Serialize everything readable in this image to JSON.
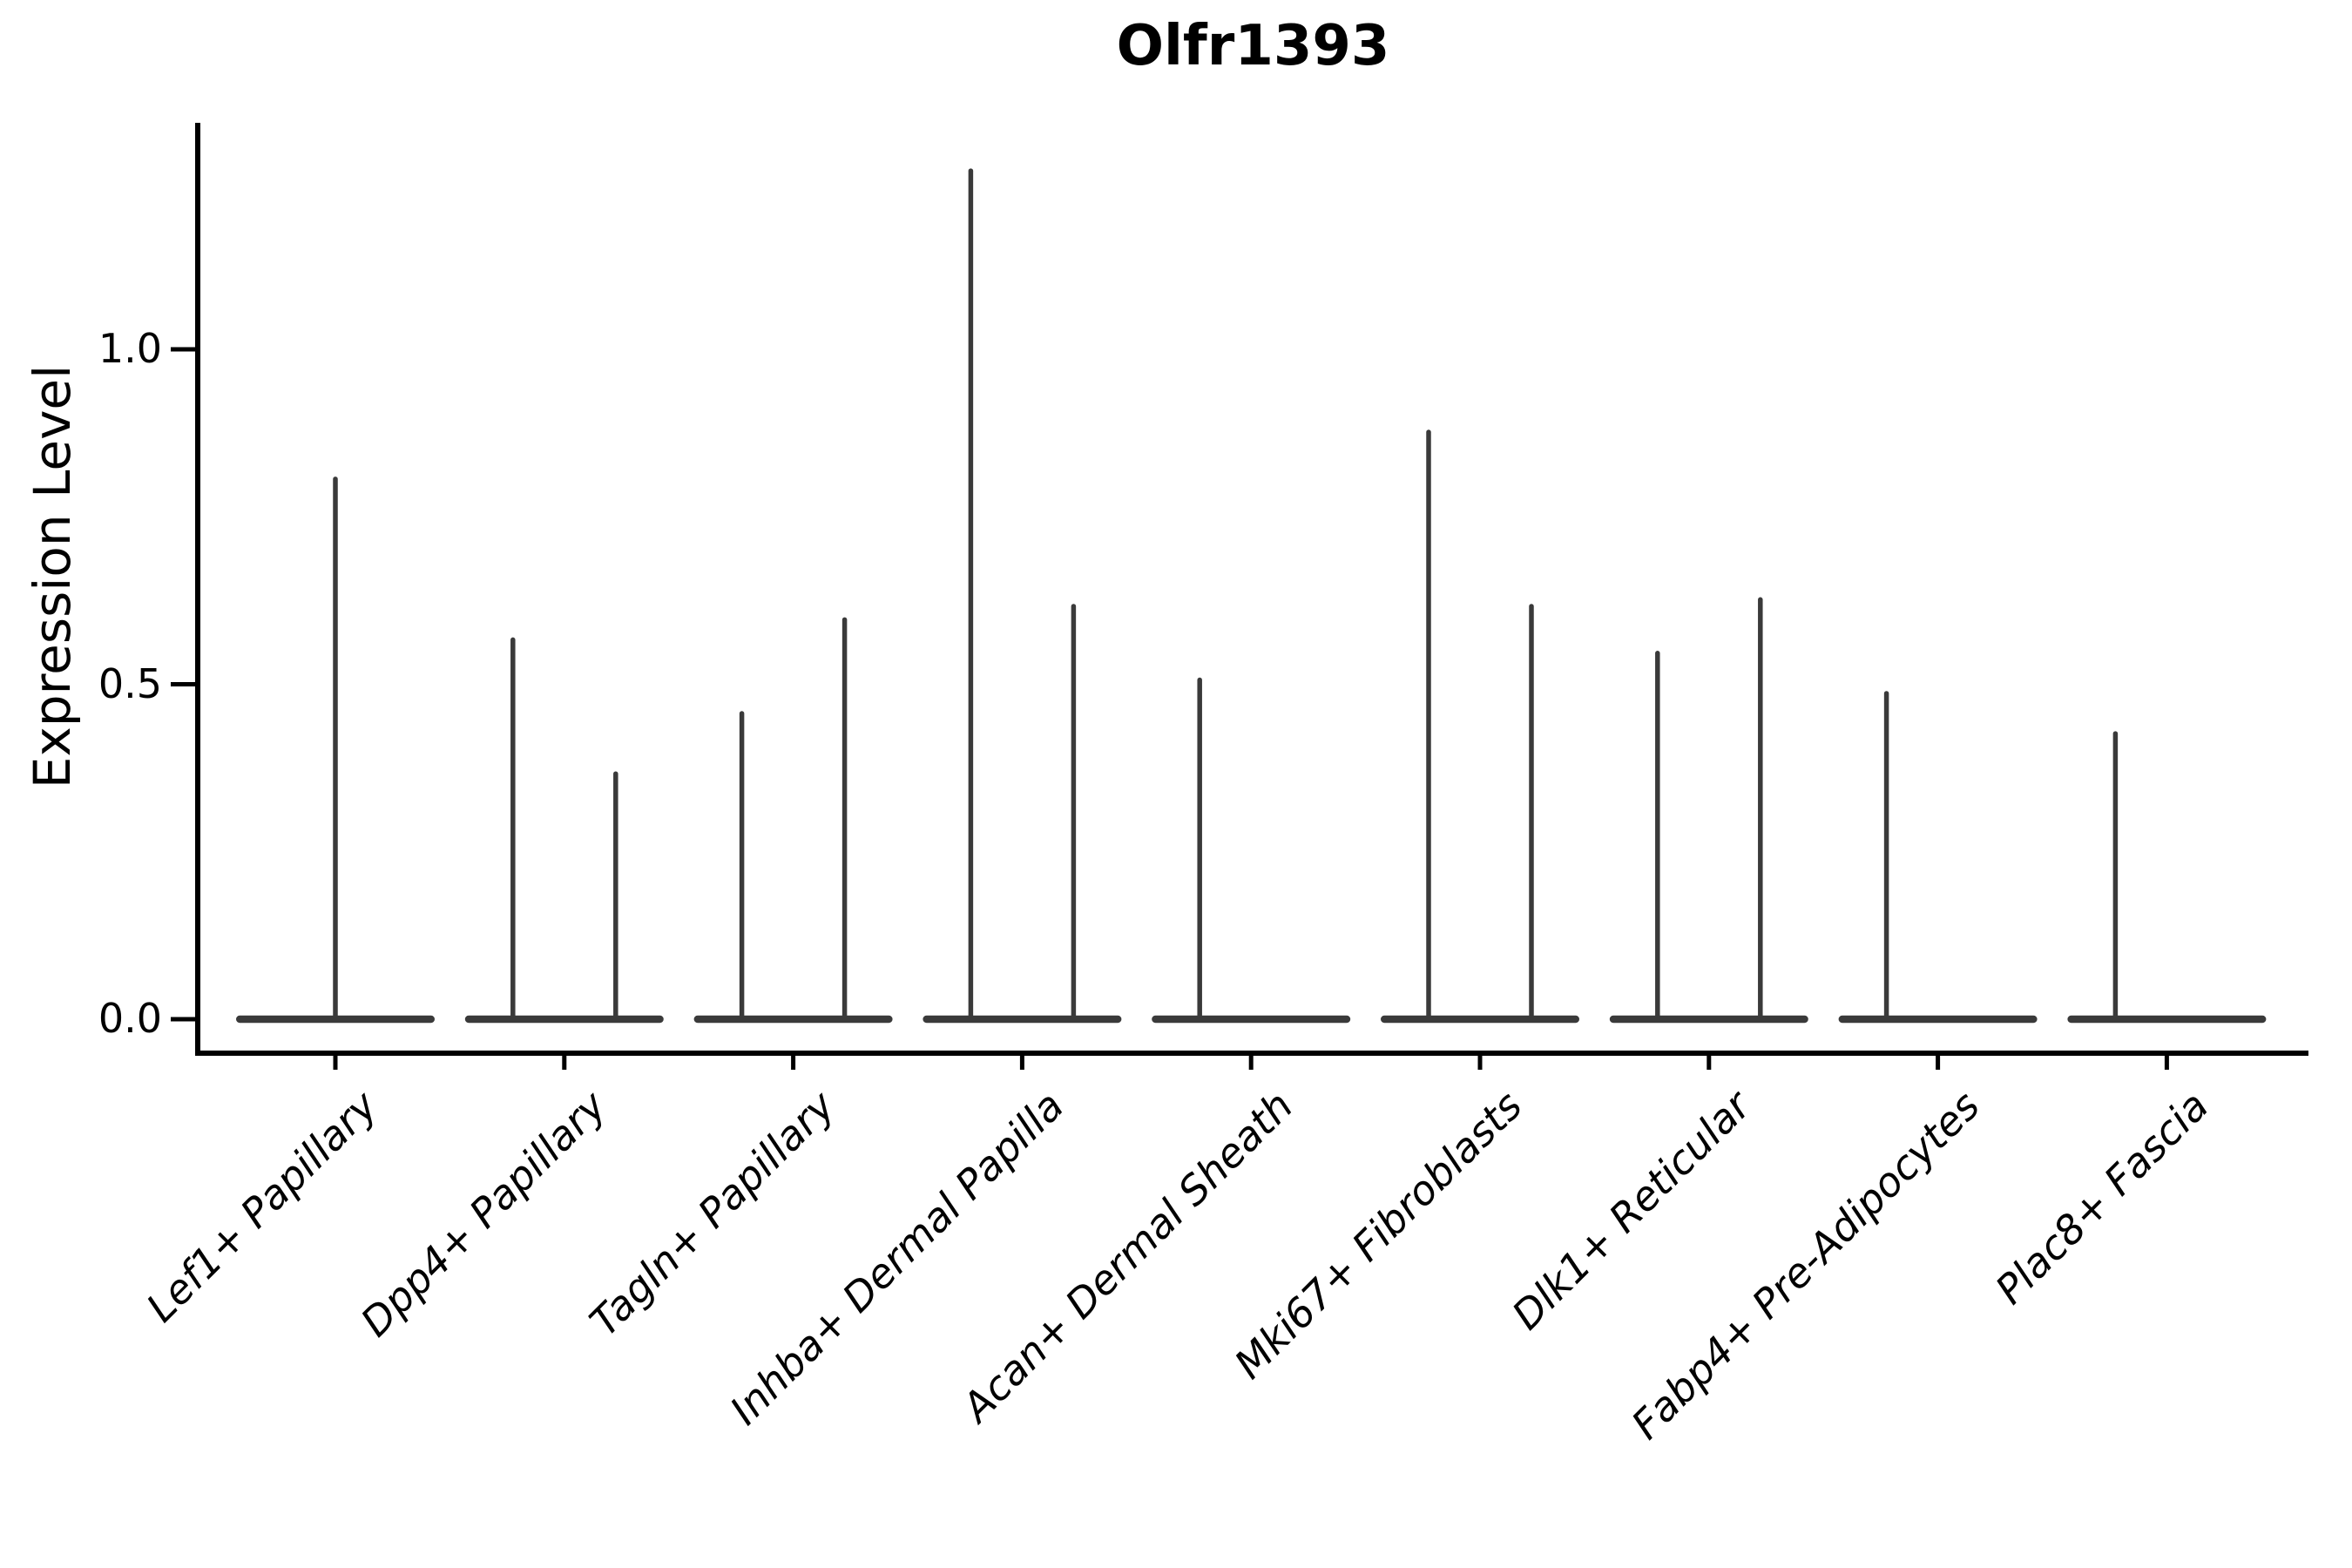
{
  "chart_data": {
    "type": "violin",
    "title": "Olfr1393",
    "ylabel": "Expression Level",
    "xlabel": "",
    "ylim": [
      -0.05,
      1.34
    ],
    "yticks": [
      1.0,
      0.5,
      0.0
    ],
    "grid": false,
    "legend": "none",
    "despine": [
      "top",
      "right"
    ],
    "baseline_value": 0.0,
    "categories": [
      "Lef1+ Papillary",
      "Dpp4+ Papillary",
      "Tagln+ Papillary",
      "Inhba+ Dermal Papilla",
      "Acan+ Dermal Sheath",
      "Mki67+ Fibroblasts",
      "Dlk1+ Reticular",
      "Fabp4+ Pre-Adipocytes",
      "Plac8+ Fascia"
    ],
    "violins": [
      {
        "category": "Lef1+ Papillary",
        "spikes": [
          {
            "position": "center",
            "max": 0.81
          }
        ]
      },
      {
        "category": "Dpp4+ Papillary",
        "spikes": [
          {
            "position": "left",
            "max": 0.57
          },
          {
            "position": "right",
            "max": 0.37
          }
        ]
      },
      {
        "category": "Tagln+ Papillary",
        "spikes": [
          {
            "position": "left",
            "max": 0.46
          },
          {
            "position": "right",
            "max": 0.6
          }
        ]
      },
      {
        "category": "Inhba+ Dermal Papilla",
        "spikes": [
          {
            "position": "left",
            "max": 1.27
          },
          {
            "position": "right",
            "max": 0.62
          }
        ]
      },
      {
        "category": "Acan+ Dermal Sheath",
        "spikes": [
          {
            "position": "left",
            "max": 0.51
          }
        ]
      },
      {
        "category": "Mki67+ Fibroblasts",
        "spikes": [
          {
            "position": "left",
            "max": 0.88
          },
          {
            "position": "right",
            "max": 0.62
          }
        ]
      },
      {
        "category": "Dlk1+ Reticular",
        "spikes": [
          {
            "position": "left",
            "max": 0.55
          },
          {
            "position": "right",
            "max": 0.63
          }
        ]
      },
      {
        "category": "Fabp4+ Pre-Adipocytes",
        "spikes": [
          {
            "position": "left",
            "max": 0.49
          }
        ]
      },
      {
        "category": "Plac8+ Fascia",
        "spikes": [
          {
            "position": "left",
            "max": 0.43
          }
        ]
      }
    ],
    "colors": {
      "violin": "#3a3a3a",
      "axis": "#000000",
      "text": "#000000",
      "background": "#ffffff"
    }
  }
}
